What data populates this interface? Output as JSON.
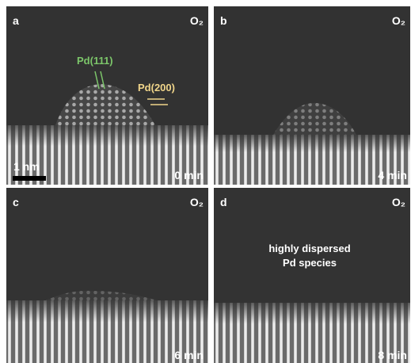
{
  "panels": [
    {
      "label": "a",
      "gas": "O₂",
      "time": "0 min"
    },
    {
      "label": "b",
      "gas": "O₂",
      "time": "4 min"
    },
    {
      "label": "c",
      "gas": "O₂",
      "time": "6 min"
    },
    {
      "label": "d",
      "gas": "O₂",
      "time": "8 min"
    }
  ],
  "annotations": {
    "pd111": "Pd(111)",
    "pd200": "Pd(200)",
    "scale_bar": "1 nm",
    "dispersed": [
      "highly dispersed",
      "Pd species"
    ]
  }
}
